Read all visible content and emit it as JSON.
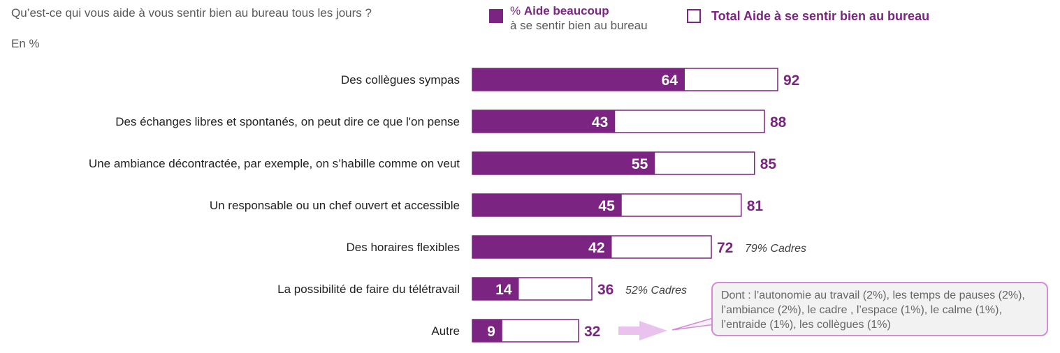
{
  "question": "Qu’est-ce qui vous aide à vous sentir bien au bureau tous les jours ?",
  "unit": "En %",
  "legend": {
    "a_prefix": "% ",
    "a_bold": "Aide beaucoup",
    "a_line2": "à se sentir bien au bureau",
    "b_label": "Total Aide à se sentir bien au bureau"
  },
  "colors": {
    "accent": "#7b2481",
    "callout_border": "#d58bd9",
    "arrow": "#e9c3ee"
  },
  "chart_data": {
    "type": "bar",
    "orientation": "horizontal",
    "categories": [
      "Des collègues sympas",
      "Des échanges libres et spontanés, on peut dire ce que l'on pense",
      "Une ambiance décontractée, par exemple, on s’habille comme on veut",
      "Un responsable ou un chef ouvert et accessible",
      "Des horaires flexibles",
      "La possibilité de faire du télétravail",
      "Autre"
    ],
    "series": [
      {
        "name": "% Aide beaucoup à se sentir bien au bureau",
        "values": [
          64,
          43,
          55,
          45,
          42,
          14,
          9
        ]
      },
      {
        "name": "Total Aide à se sentir bien au bureau",
        "values": [
          92,
          88,
          85,
          81,
          72,
          36,
          32
        ]
      }
    ],
    "annotations": [
      "",
      "",
      "",
      "",
      "79% Cadres",
      "52% Cadres",
      ""
    ],
    "xlim": [
      0,
      100
    ],
    "grid": false,
    "legend_position": "top"
  },
  "callout_text": "Dont : l’autonomie au travail (2%), les temps de pauses (2%), l’ambiance (2%), le cadre , l’espace (1%), le calme (1%), l’entraide (1%), les collègues (1%)"
}
